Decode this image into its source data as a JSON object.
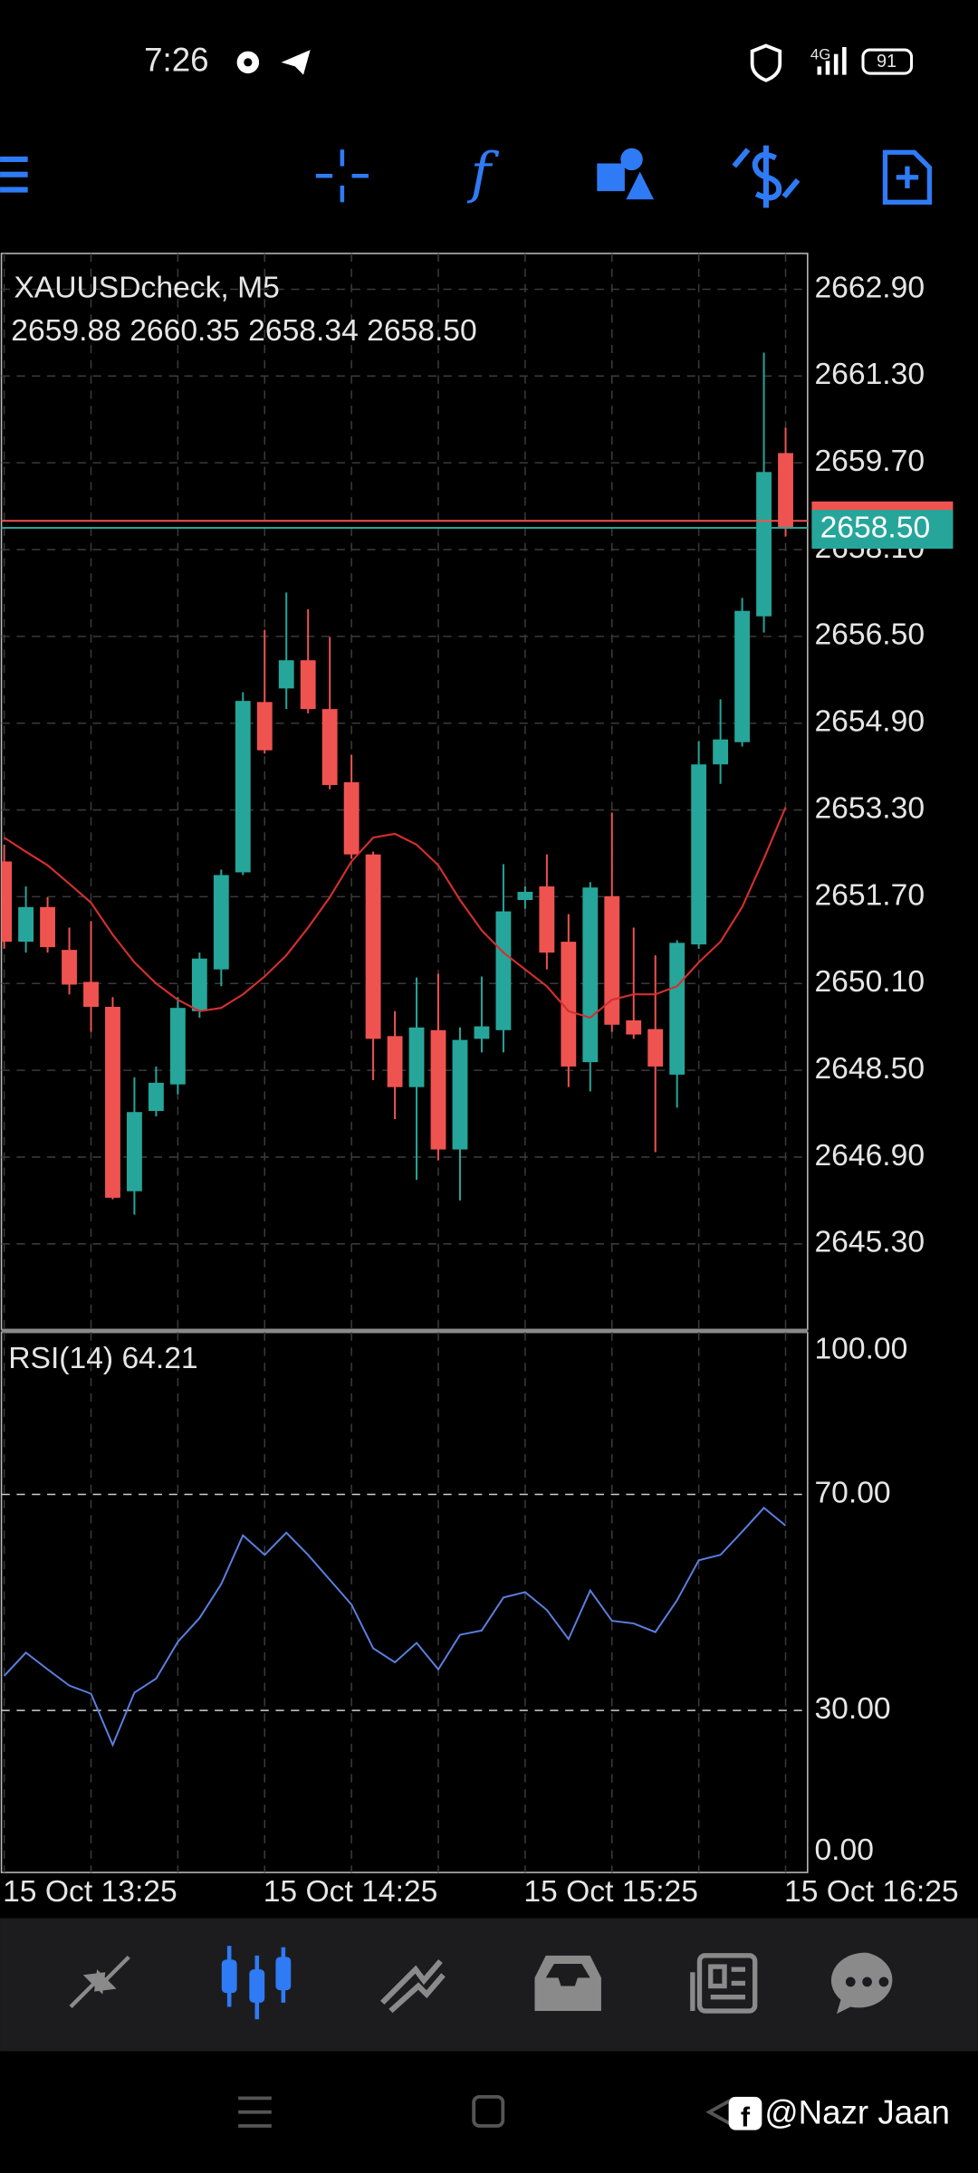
{
  "status": {
    "time": "7:26",
    "network": "4G",
    "battery": "91"
  },
  "chart_data": [
    {
      "type": "candlestick",
      "title": "XAUUSDcheck, M5",
      "subtitle": "2659.88 2660.35 2658.34 2658.50",
      "open": [
        2652.35,
        2650.87,
        2651.51,
        2650.72,
        2650.13,
        2649.67,
        2646.27,
        2647.75,
        2648.24,
        2649.59,
        2650.36,
        2652.15,
        2655.29,
        2655.54,
        2656.06,
        2655.16,
        2653.81,
        2652.48,
        2649.13,
        2648.19,
        2649.24,
        2647.04,
        2649.08,
        2649.24,
        2651.64,
        2651.89,
        2650.87,
        2648.65,
        2651.71,
        2649.42,
        2649.26,
        2648.42,
        2650.82,
        2654.14,
        2654.55,
        2656.87,
        2659.88
      ],
      "high": [
        2652.66,
        2651.89,
        2651.69,
        2651.13,
        2651.25,
        2649.85,
        2648.37,
        2648.57,
        2649.85,
        2650.67,
        2652.2,
        2655.47,
        2656.62,
        2657.31,
        2657.0,
        2656.49,
        2654.32,
        2652.53,
        2649.59,
        2650.21,
        2650.28,
        2649.29,
        2650.23,
        2652.3,
        2651.89,
        2652.48,
        2651.38,
        2651.97,
        2653.25,
        2651.13,
        2650.62,
        2650.9,
        2654.57,
        2655.34,
        2657.21,
        2661.73,
        2660.35
      ],
      "low": [
        2650.74,
        2650.67,
        2650.67,
        2649.9,
        2649.21,
        2646.12,
        2645.84,
        2647.65,
        2648.06,
        2649.47,
        2650.05,
        2652.1,
        2654.34,
        2655.16,
        2655.08,
        2653.68,
        2652.4,
        2648.32,
        2647.6,
        2646.48,
        2646.84,
        2646.1,
        2648.83,
        2648.83,
        2651.48,
        2650.36,
        2648.19,
        2648.11,
        2649.21,
        2649.08,
        2646.99,
        2647.81,
        2650.74,
        2653.78,
        2654.47,
        2656.57,
        2658.34
      ],
      "close": [
        2650.87,
        2651.51,
        2650.77,
        2650.08,
        2649.67,
        2646.15,
        2647.73,
        2648.27,
        2649.65,
        2650.56,
        2652.1,
        2655.31,
        2654.4,
        2656.06,
        2655.16,
        2653.76,
        2652.48,
        2649.08,
        2648.19,
        2649.29,
        2647.04,
        2649.06,
        2649.31,
        2651.43,
        2651.79,
        2650.67,
        2648.57,
        2651.87,
        2649.34,
        2649.16,
        2648.57,
        2650.85,
        2654.14,
        2654.6,
        2656.97,
        2659.53,
        2658.5
      ],
      "up_color": "#26a69a",
      "down_color": "#ef5350",
      "ma": {
        "color": "#d32f2f",
        "values": [
          2652.79,
          2652.53,
          2652.28,
          2651.94,
          2651.59,
          2651.0,
          2650.49,
          2650.1,
          2649.8,
          2649.59,
          2649.65,
          2649.9,
          2650.23,
          2650.62,
          2651.13,
          2651.69,
          2652.35,
          2652.79,
          2652.86,
          2652.66,
          2652.28,
          2651.64,
          2651.08,
          2650.67,
          2650.36,
          2650.05,
          2649.59,
          2649.47,
          2649.8,
          2649.9,
          2649.9,
          2650.05,
          2650.49,
          2650.87,
          2651.51,
          2652.4,
          2653.35
        ]
      },
      "bid": {
        "value": 2658.5,
        "label": "2658.50",
        "color": "#26a69a"
      },
      "ask": {
        "value": 2658.63,
        "color": "#ef5350"
      },
      "ylim": [
        2643.72,
        2663.56
      ],
      "yticks": [
        {
          "value": 2662.9,
          "label": "2662.90"
        },
        {
          "value": 2661.3,
          "label": "2661.30"
        },
        {
          "value": 2659.7,
          "label": "2659.70"
        },
        {
          "value": 2658.1,
          "label": "2658.10"
        },
        {
          "value": 2656.5,
          "label": "2656.50"
        },
        {
          "value": 2654.9,
          "label": "2654.90"
        },
        {
          "value": 2653.3,
          "label": "2653.30"
        },
        {
          "value": 2651.7,
          "label": "2651.70"
        },
        {
          "value": 2650.1,
          "label": "2650.10"
        },
        {
          "value": 2648.5,
          "label": "2648.50"
        },
        {
          "value": 2646.9,
          "label": "2646.90"
        },
        {
          "value": 2645.3,
          "label": "2645.30"
        }
      ],
      "grid": true
    },
    {
      "type": "line",
      "title": "RSI(14) 64.21",
      "categories": [
        "15 Oct 13:25",
        null,
        null,
        null,
        null,
        null,
        null,
        null,
        null,
        null,
        null,
        null,
        "15 Oct 14:25",
        null,
        null,
        null,
        null,
        null,
        null,
        null,
        null,
        null,
        null,
        null,
        "15 Oct 15:25",
        null,
        null,
        null,
        null,
        null,
        null,
        null,
        null,
        null,
        null,
        null,
        "15 Oct 16:25"
      ],
      "values": [
        36.4,
        40.7,
        37.6,
        34.6,
        33.1,
        23.6,
        33.3,
        35.9,
        42.7,
        47.1,
        53.4,
        62.4,
        58.8,
        62.9,
        58.8,
        54.2,
        49.6,
        41.5,
        38.9,
        42.5,
        37.6,
        44.0,
        44.8,
        50.9,
        51.9,
        48.6,
        43.2,
        52.2,
        46.6,
        46.1,
        44.5,
        50.4,
        57.8,
        58.8,
        63.1,
        67.5,
        64.21
      ],
      "color": "#5b7fe0",
      "ylim": [
        0,
        100
      ],
      "yticks": [
        {
          "value": 100,
          "label": "100.00"
        },
        {
          "value": 70,
          "label": "70.00"
        },
        {
          "value": 30,
          "label": "30.00"
        },
        {
          "value": 0,
          "label": "0.00"
        }
      ],
      "grid": true
    }
  ],
  "watermark": "@Nazr Jaan"
}
